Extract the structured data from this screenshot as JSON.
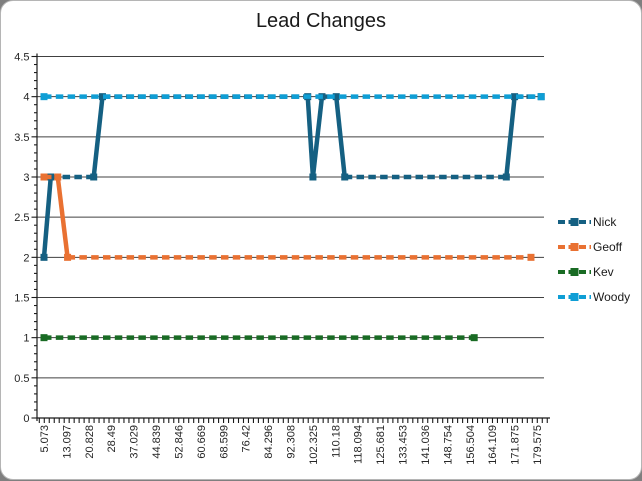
{
  "page": {
    "background_color": "#7F7F7F",
    "card_color": "#FFFFFF",
    "grid_color": "#404040",
    "axis_color": "#1A1A1A",
    "text_color": "#262626"
  },
  "chart_data": {
    "type": "line",
    "title": "Lead Changes",
    "xlabel": "",
    "ylabel": "",
    "ylim": [
      0,
      4.5
    ],
    "y_tick_step": 0.5,
    "grid": "horizontal gridlines every 0.5, dark gray",
    "legend_position": "right",
    "x_tick_labels": [
      "5.073",
      "13.097",
      "20.828",
      "28.49",
      "37.029",
      "44.839",
      "52.846",
      "60.669",
      "68.599",
      "76.42",
      "84.296",
      "92.308",
      "102.325",
      "110.18",
      "118.094",
      "125.681",
      "133.453",
      "141.036",
      "148.754",
      "156.504",
      "164.109",
      "171.875",
      "179.575"
    ],
    "y_tick_labels": [
      "0",
      "0.5",
      "1",
      "1.5",
      "2",
      "2.5",
      "3",
      "3.5",
      "4",
      "4.5"
    ],
    "series": [
      {
        "name": "Nick",
        "color": "#156082",
        "points": [
          [
            5.073,
            2
          ],
          [
            7.5,
            3
          ],
          [
            22.5,
            3
          ],
          [
            25.5,
            4
          ],
          [
            100,
            4
          ],
          [
            102.325,
            3
          ],
          [
            105.5,
            4
          ],
          [
            110.5,
            4
          ],
          [
            113.5,
            3
          ],
          [
            169,
            3
          ],
          [
            171.875,
            4
          ],
          [
            181,
            4
          ]
        ]
      },
      {
        "name": "Geoff",
        "color": "#E97132",
        "points": [
          [
            5.073,
            3
          ],
          [
            10,
            3
          ],
          [
            13.5,
            2
          ],
          [
            177.5,
            2
          ]
        ]
      },
      {
        "name": "Kev",
        "color": "#196B24",
        "points": [
          [
            5.073,
            1
          ],
          [
            158,
            1
          ]
        ]
      },
      {
        "name": "Woody",
        "color": "#0F9ED5",
        "points": [
          [
            5.073,
            4
          ],
          [
            181,
            4
          ]
        ]
      }
    ]
  }
}
